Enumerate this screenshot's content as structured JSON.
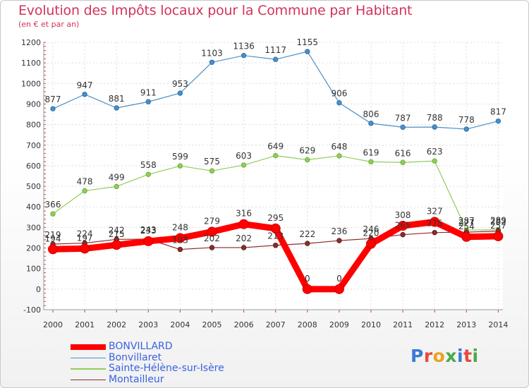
{
  "title": "Evolution des Impôts locaux pour la Commune par Habitant",
  "subtitle": "(en € et par an)",
  "logo_text": "Proxiti",
  "chart_data": {
    "type": "line",
    "x": [
      2000,
      2001,
      2002,
      2003,
      2004,
      2005,
      2006,
      2007,
      2008,
      2009,
      2010,
      2011,
      2012,
      2013,
      2014
    ],
    "ylim": [
      -100,
      1200
    ],
    "yticks": [
      -100,
      0,
      100,
      200,
      300,
      400,
      500,
      600,
      700,
      800,
      900,
      1000,
      1100,
      1200
    ],
    "grid": true,
    "legend_position": "bottom-left",
    "series": [
      {
        "name": "BONVILLARD",
        "color": "#ff0000",
        "values": [
          194,
          197,
          215,
          233,
          248,
          279,
          316,
          295,
          0,
          0,
          220,
          308,
          327,
          254,
          257
        ]
      },
      {
        "name": "Bonvillaret",
        "color": "#4a90c8",
        "values": [
          877,
          947,
          881,
          911,
          953,
          1103,
          1136,
          1117,
          1155,
          906,
          806,
          787,
          788,
          778,
          817
        ]
      },
      {
        "name": "Sainte-Hélène-sur-Isère",
        "color": "#8fce5a",
        "values": [
          366,
          478,
          499,
          558,
          599,
          575,
          603,
          649,
          629,
          648,
          619,
          616,
          623,
          287,
          289
        ]
      },
      {
        "name": "Montailleur",
        "color": "#8b2e2e",
        "values": [
          219,
          224,
          242,
          243,
          193,
          202,
          202,
          213,
          222,
          236,
          246,
          265,
          275,
          277,
          282
        ]
      }
    ]
  }
}
